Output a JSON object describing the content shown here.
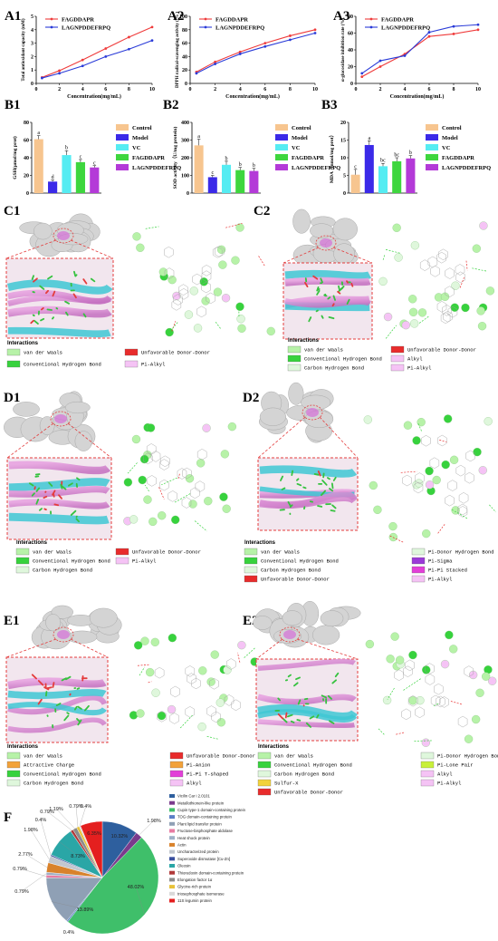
{
  "panel_labels": {
    "A1": "A1",
    "A2": "A2",
    "A3": "A3",
    "B1": "B1",
    "B2": "B2",
    "B3": "B3",
    "C1": "C1",
    "C2": "C2",
    "D1": "D1",
    "D2": "D2",
    "E1": "E1",
    "E2": "E2",
    "F": "F"
  },
  "colors": {
    "red": "#ef3b3b",
    "blue": "#2a3bd8",
    "control": "#f7c58f",
    "model": "#3b2ae8",
    "vc": "#55ecf2",
    "fagddapr": "#3ed63e",
    "lagnp": "#b43ad8"
  },
  "interactions": {
    "C1": {
      "title": "Interactions",
      "items": [
        {
          "label": "van der Waals",
          "color": "#b7f2a8"
        },
        {
          "label": "Conventional Hydrogen Bond",
          "color": "#37d23d"
        },
        {
          "label": "Unfavorable Donor-Donor",
          "color": "#e82c2c"
        },
        {
          "label": "Pi-Alkyl",
          "color": "#f5c3f5"
        }
      ]
    },
    "C2": {
      "title": "Interactions",
      "items": [
        {
          "label": "van der Waals",
          "color": "#b7f2a8"
        },
        {
          "label": "Conventional Hydrogen Bond",
          "color": "#37d23d"
        },
        {
          "label": "Carbon Hydrogen Bond",
          "color": "#dff7dc"
        },
        {
          "label": "Unfavorable Donor-Donor",
          "color": "#e82c2c"
        },
        {
          "label": "Alkyl",
          "color": "#f5c3f5"
        },
        {
          "label": "Pi-Alkyl",
          "color": "#f5c3f5"
        }
      ]
    },
    "D1": {
      "title": "Interactions",
      "items": [
        {
          "label": "van der Waals",
          "color": "#b7f2a8"
        },
        {
          "label": "Conventional Hydrogen Bond",
          "color": "#37d23d"
        },
        {
          "label": "Carbon Hydrogen Bond",
          "color": "#dff7dc"
        },
        {
          "label": "Unfavorable Donor-Donor",
          "color": "#e82c2c"
        },
        {
          "label": "Pi-Alkyl",
          "color": "#f5c3f5"
        }
      ]
    },
    "D2": {
      "title": "Interactions",
      "items": [
        {
          "label": "van der Waals",
          "color": "#b7f2a8"
        },
        {
          "label": "Conventional Hydrogen Bond",
          "color": "#37d23d"
        },
        {
          "label": "Carbon Hydrogen Bond",
          "color": "#dff7dc"
        },
        {
          "label": "Unfavorable Donor-Donor",
          "color": "#e82c2c"
        },
        {
          "label": "Pi-Donor Hydrogen Bond",
          "color": "#dff7dc"
        },
        {
          "label": "Pi-Sigma",
          "color": "#9b3ad8"
        },
        {
          "label": "Pi-Pi Stacked",
          "color": "#e23fd8"
        },
        {
          "label": "Pi-Alkyl",
          "color": "#f5c3f5"
        }
      ]
    },
    "E1": {
      "title": "Interactions",
      "items": [
        {
          "label": "van der Waals",
          "color": "#b7f2a8"
        },
        {
          "label": "Attractive Charge",
          "color": "#f2a23a"
        },
        {
          "label": "Conventional Hydrogen Bond",
          "color": "#37d23d"
        },
        {
          "label": "Carbon Hydrogen Bond",
          "color": "#dff7dc"
        },
        {
          "label": "Unfavorable Donor-Donor",
          "color": "#e82c2c"
        },
        {
          "label": "Pi-Anion",
          "color": "#f2a23a"
        },
        {
          "label": "Pi-Pi T-shaped",
          "color": "#e23fd8"
        },
        {
          "label": "Alkyl",
          "color": "#f5c3f5"
        }
      ]
    },
    "E2": {
      "title": "Interactions",
      "items": [
        {
          "label": "van der Waals",
          "color": "#b7f2a8"
        },
        {
          "label": "Conventional Hydrogen Bond",
          "color": "#37d23d"
        },
        {
          "label": "Carbon Hydrogen Bond",
          "color": "#dff7dc"
        },
        {
          "label": "Sulfur-X",
          "color": "#f2d23a"
        },
        {
          "label": "Unfavorable Donor-Donor",
          "color": "#e82c2c"
        },
        {
          "label": "Pi-Donor Hydrogen Bond",
          "color": "#dff7dc"
        },
        {
          "label": "Pi-Lone Pair",
          "color": "#c8f03a"
        },
        {
          "label": "Alkyl",
          "color": "#f5c3f5"
        },
        {
          "label": "Pi-Alkyl",
          "color": "#f5c3f5"
        }
      ]
    }
  },
  "chart_data": [
    {
      "id": "A1",
      "type": "line",
      "xlabel": "Concentration(mg/mL)",
      "ylabel": "Total antioxidant capacity (mM)",
      "x": [
        0.5,
        2,
        4,
        6,
        8,
        10
      ],
      "xticks": [
        0,
        2,
        4,
        6,
        8,
        10
      ],
      "ylim": [
        0,
        5
      ],
      "yticks": [
        0,
        1,
        2,
        3,
        4,
        5
      ],
      "legend_position": "top-left",
      "series": [
        {
          "name": "FAGDDAPR",
          "color": "#ef3b3b",
          "values": [
            0.45,
            0.95,
            1.75,
            2.6,
            3.45,
            4.2
          ]
        },
        {
          "name": "LAGNPDDEFRPQ",
          "color": "#2a3bd8",
          "values": [
            0.4,
            0.75,
            1.3,
            2.0,
            2.55,
            3.2
          ]
        }
      ]
    },
    {
      "id": "A2",
      "type": "line",
      "xlabel": "Concentration(mg/mL)",
      "ylabel": "DPPH radical-scavenging activity ( % )",
      "x": [
        0.5,
        2,
        4,
        6,
        8,
        10
      ],
      "xticks": [
        0,
        2,
        4,
        6,
        8,
        10
      ],
      "ylim": [
        0,
        100
      ],
      "yticks": [
        0,
        20,
        40,
        60,
        80,
        100
      ],
      "legend_position": "top-left",
      "series": [
        {
          "name": "FAGDDAPR",
          "color": "#ef3b3b",
          "values": [
            17,
            32,
            47,
            60,
            71,
            80
          ]
        },
        {
          "name": "LAGNPDDEFRPQ",
          "color": "#2a3bd8",
          "values": [
            15,
            29,
            44,
            55,
            65,
            75
          ]
        }
      ]
    },
    {
      "id": "A3",
      "type": "line",
      "xlabel": "Concentration(mg/mL)",
      "ylabel": "α-glucosidase inhibition rate (%)",
      "x": [
        0.5,
        2,
        4,
        6,
        8,
        10
      ],
      "xticks": [
        0,
        2,
        4,
        6,
        8,
        10
      ],
      "ylim": [
        0,
        80
      ],
      "yticks": [
        0,
        20,
        40,
        60,
        80
      ],
      "legend_position": "top-left",
      "series": [
        {
          "name": "FAGDDAPR",
          "color": "#ef3b3b",
          "values": [
            8,
            20,
            35,
            56,
            59,
            64
          ]
        },
        {
          "name": "LAGNPDDEFRPQ",
          "color": "#2a3bd8",
          "values": [
            12,
            27,
            33,
            61,
            68,
            70
          ]
        }
      ]
    },
    {
      "id": "B1",
      "type": "bar",
      "ylabel": "GSH(μmol/mg prot)",
      "categories": [
        "Control",
        "Model",
        "VC",
        "FAGDDAPR",
        "LAGNPDDEFRPQ"
      ],
      "values": [
        61,
        13,
        43,
        35,
        29
      ],
      "errors": [
        4,
        2,
        5,
        3,
        2
      ],
      "letters": [
        "a",
        "d",
        "b",
        "c",
        "c"
      ],
      "ylim": [
        0,
        80
      ],
      "yticks": [
        0,
        20,
        40,
        60,
        80
      ],
      "legend_position": "right"
    },
    {
      "id": "B2",
      "type": "bar",
      "ylabel": "SOD activity（U/mg protein)",
      "categories": [
        "Control",
        "Model",
        "VC",
        "FAGDDAPR",
        "LAGNPDDEFRPQ"
      ],
      "values": [
        270,
        90,
        160,
        130,
        125
      ],
      "errors": [
        35,
        10,
        20,
        15,
        15
      ],
      "letters": [
        "a",
        "c",
        "b",
        "b",
        "b"
      ],
      "ylim": [
        0,
        400
      ],
      "yticks": [
        0,
        100,
        200,
        300,
        400
      ],
      "legend_position": "right"
    },
    {
      "id": "B3",
      "type": "bar",
      "ylabel": "MDA（nmol/mg prot）",
      "categories": [
        "Control",
        "Model",
        "VC",
        "FAGDDAPR",
        "LAGNPDDEFRPQ"
      ],
      "values": [
        5.2,
        13.6,
        7.6,
        9.0,
        9.8
      ],
      "errors": [
        1.5,
        1.2,
        0.8,
        1.0,
        0.8
      ],
      "letters": [
        "c",
        "a",
        "bc",
        "bc",
        "b"
      ],
      "ylim": [
        0,
        20
      ],
      "yticks": [
        0,
        5,
        10,
        15,
        20
      ],
      "legend_position": "right"
    },
    {
      "id": "F",
      "type": "pie",
      "slices": [
        {
          "name": "Vicilin Car i 2.0101",
          "value": 10.32,
          "label": "10.32%",
          "color": "#2e5f9e"
        },
        {
          "name": "Metallothionein-like protein",
          "value": 1.98,
          "label": "1.98%",
          "color": "#7a3b8c"
        },
        {
          "name": "Cupin type-1 domain-containing protein",
          "value": 48.02,
          "label": "48.02%",
          "color": "#3fbf6a"
        },
        {
          "name": "TOG domain-containing protein",
          "value": 0.4,
          "label": "0.4%",
          "color": "#5b7fc7"
        },
        {
          "name": "Plant lipid transfer protein",
          "value": 13.89,
          "label": "13.89%",
          "color": "#8fa0b5"
        },
        {
          "name": "Fructose-bisphosphate aldolase",
          "value": 0.79,
          "label": "0.79%",
          "color": "#e87ca3"
        },
        {
          "name": "Heat shock protein",
          "value": 0.79,
          "label": "0.79%",
          "color": "#9fb0c7"
        },
        {
          "name": "Actin",
          "value": 2.77,
          "label": "2.77%",
          "color": "#d9822b"
        },
        {
          "name": "Uncharacterized protein",
          "value": 1.98,
          "label": "1.98%",
          "color": "#c2c7cf"
        },
        {
          "name": "Superoxide dismutase [Cu-Zn]",
          "value": 0.4,
          "label": "0.4%",
          "color": "#3a4f9e"
        },
        {
          "name": "Oleosin",
          "value": 8.73,
          "label": "8.73%",
          "color": "#2aa6a6"
        },
        {
          "name": "Thioredoxin domain-containing protein",
          "value": 0.79,
          "label": "0.79%",
          "color": "#b03a3a"
        },
        {
          "name": "Elongation factor 1α",
          "value": 1.19,
          "label": "1.19%",
          "color": "#8c8c8c"
        },
        {
          "name": "Glycine-rich protein",
          "value": 0.79,
          "label": "0.79%",
          "color": "#e8c23a"
        },
        {
          "name": "triosephosphate isomerase",
          "value": 0.4,
          "label": "0.4%",
          "color": "#d9d9d9"
        },
        {
          "name": "11S legumin protein",
          "value": 6.35,
          "label": "6.35%",
          "color": "#e41f1f"
        }
      ]
    }
  ]
}
